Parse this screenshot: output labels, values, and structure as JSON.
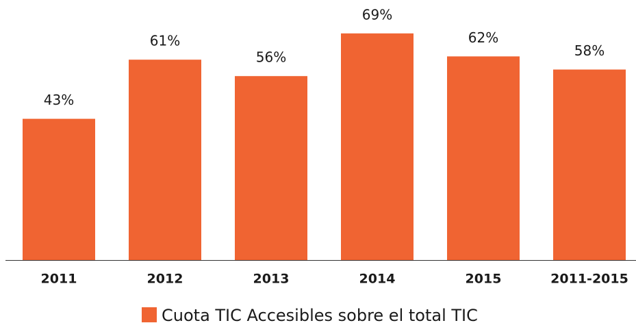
{
  "chart_data": {
    "type": "bar",
    "categories": [
      "2011",
      "2012",
      "2013",
      "2014",
      "2015",
      "2011-2015"
    ],
    "series": [
      {
        "name": "Cuota TIC Accesibles sobre el total TIC",
        "color": "#f06432",
        "values": [
          43,
          61,
          56,
          69,
          62,
          58
        ],
        "value_labels": [
          "43%",
          "61%",
          "56%",
          "69%",
          "62%",
          "58%"
        ]
      }
    ]
  }
}
